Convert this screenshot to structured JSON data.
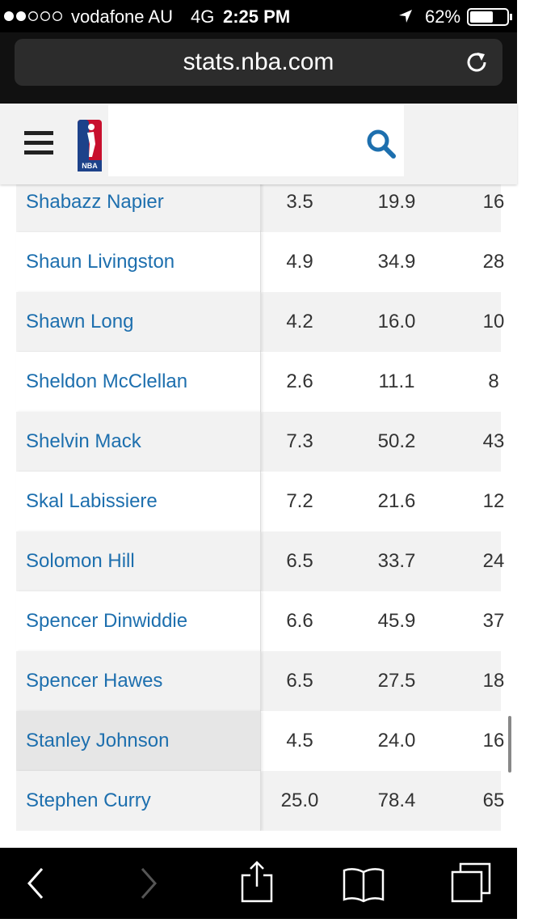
{
  "status_bar": {
    "carrier": "vodafone AU",
    "network": "4G",
    "time": "2:25 PM",
    "battery": "62%"
  },
  "browser": {
    "url": "stats.nba.com"
  },
  "header": {
    "logo_text": "NBA"
  },
  "table": {
    "rows": [
      [
        "Shabazz Napier",
        "3.5",
        "19.9",
        "16"
      ],
      [
        "Shaun Livingston",
        "4.9",
        "34.9",
        "28"
      ],
      [
        "Shawn Long",
        "4.2",
        "16.0",
        "10"
      ],
      [
        "Sheldon McClellan",
        "2.6",
        "11.1",
        "8"
      ],
      [
        "Shelvin Mack",
        "7.3",
        "50.2",
        "43"
      ],
      [
        "Skal Labissiere",
        "7.2",
        "21.6",
        "12"
      ],
      [
        "Solomon Hill",
        "6.5",
        "33.7",
        "24"
      ],
      [
        "Spencer Dinwiddie",
        "6.6",
        "45.9",
        "37"
      ],
      [
        "Spencer Hawes",
        "6.5",
        "27.5",
        "18"
      ],
      [
        "Stanley Johnson",
        "4.5",
        "24.0",
        "16"
      ],
      [
        "Stephen Curry",
        "25.0",
        "78.4",
        "65"
      ]
    ]
  }
}
